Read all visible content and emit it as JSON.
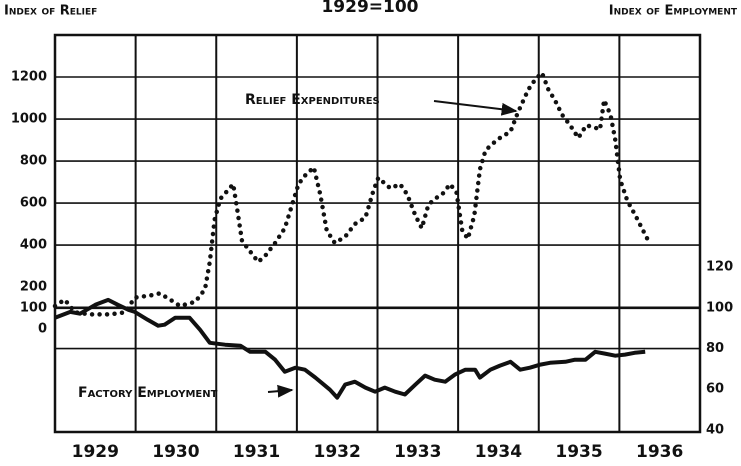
{
  "chart_data": {
    "type": "line",
    "title": "1929=100",
    "y_label": "Index of Relief",
    "y2_label": "Index of Employment",
    "annotations": [
      "Relief Expenditures",
      "Factory Employment"
    ],
    "categories": [
      "1929",
      "1930",
      "1931",
      "1932",
      "1933",
      "1934",
      "1935",
      "1936"
    ],
    "xlim": [
      1929,
      1937
    ],
    "xgrid": [
      1930,
      1931,
      1932,
      1933,
      1934,
      1935,
      1936
    ],
    "ylim": [
      -490,
      1400
    ],
    "yticks": [
      0,
      100,
      200,
      400,
      600,
      800,
      1000,
      1200
    ],
    "ygrid": [
      400,
      600,
      800,
      1000,
      1200
    ],
    "y2lim": [
      39,
      234
    ],
    "y2ticks": [
      40,
      60,
      80,
      100,
      120
    ],
    "y2grid": [
      80
    ],
    "reference_line": 100,
    "series": [
      {
        "name": "Relief Expenditures",
        "color": "#111111",
        "style": "dotted",
        "axis": "y",
        "x": [
          1929.0,
          1929.12,
          1929.25,
          1929.43,
          1929.68,
          1929.87,
          1929.99,
          1930.18,
          1930.3,
          1930.43,
          1930.55,
          1930.74,
          1930.86,
          1930.92,
          1930.98,
          1931.05,
          1931.12,
          1931.21,
          1931.26,
          1931.32,
          1931.42,
          1931.52,
          1931.61,
          1931.73,
          1931.85,
          1931.94,
          1932.02,
          1932.1,
          1932.21,
          1932.29,
          1932.37,
          1932.47,
          1932.6,
          1932.72,
          1932.85,
          1932.95,
          1933.01,
          1933.07,
          1933.16,
          1933.28,
          1933.37,
          1933.47,
          1933.55,
          1933.63,
          1933.71,
          1933.8,
          1933.9,
          1933.98,
          1934.05,
          1934.12,
          1934.2,
          1934.27,
          1934.34,
          1934.42,
          1934.52,
          1934.65,
          1934.74,
          1934.87,
          1934.96,
          1935.04,
          1935.12,
          1935.2,
          1935.29,
          1935.39,
          1935.49,
          1935.59,
          1935.69,
          1935.76,
          1935.81,
          1935.89,
          1935.95,
          1936.01,
          1936.1,
          1936.2,
          1936.28,
          1936.36
        ],
        "values": [
          110,
          140,
          80,
          70,
          70,
          80,
          150,
          160,
          170,
          140,
          110,
          130,
          190,
          320,
          520,
          620,
          650,
          690,
          570,
          420,
          370,
          320,
          350,
          410,
          480,
          590,
          690,
          730,
          770,
          640,
          470,
          410,
          440,
          500,
          530,
          660,
          720,
          700,
          670,
          690,
          640,
          540,
          480,
          590,
          620,
          640,
          690,
          650,
          470,
          430,
          540,
          760,
          850,
          880,
          910,
          940,
          1030,
          1140,
          1190,
          1220,
          1140,
          1090,
          1020,
          970,
          910,
          970,
          960,
          950,
          1090,
          1020,
          900,
          710,
          610,
          540,
          480,
          420
        ]
      },
      {
        "name": "Factory Employment",
        "color": "#111111",
        "style": "solid",
        "axis": "y2",
        "x": [
          1929.0,
          1929.19,
          1929.31,
          1929.5,
          1929.66,
          1929.78,
          1929.91,
          1929.99,
          1930.15,
          1930.28,
          1930.36,
          1930.49,
          1930.67,
          1930.8,
          1930.92,
          1931.11,
          1931.3,
          1931.42,
          1931.61,
          1931.73,
          1931.85,
          1931.98,
          1932.1,
          1932.23,
          1932.41,
          1932.5,
          1932.6,
          1932.72,
          1932.85,
          1932.97,
          1933.09,
          1933.22,
          1933.34,
          1933.47,
          1933.59,
          1933.71,
          1933.84,
          1933.96,
          1934.09,
          1934.21,
          1934.27,
          1934.4,
          1934.52,
          1934.65,
          1934.77,
          1934.89,
          1935.02,
          1935.14,
          1935.33,
          1935.45,
          1935.58,
          1935.7,
          1935.82,
          1935.95,
          1936.07,
          1936.19,
          1936.32
        ],
        "values": [
          95.1,
          98.0,
          97.1,
          101.5,
          103.9,
          101.5,
          99.0,
          98.0,
          94.1,
          91.2,
          91.7,
          95.1,
          95.1,
          89.2,
          82.8,
          81.9,
          81.4,
          78.4,
          78.4,
          74.5,
          68.6,
          70.6,
          69.6,
          65.7,
          59.8,
          55.9,
          62.3,
          63.7,
          60.8,
          58.8,
          60.8,
          58.8,
          57.4,
          62.3,
          66.7,
          64.7,
          63.7,
          67.2,
          69.6,
          69.6,
          65.7,
          69.6,
          71.6,
          73.5,
          69.6,
          70.6,
          72.1,
          73.0,
          73.5,
          74.5,
          74.5,
          78.4,
          77.5,
          76.5,
          77.0,
          77.9,
          78.4
        ]
      }
    ]
  }
}
